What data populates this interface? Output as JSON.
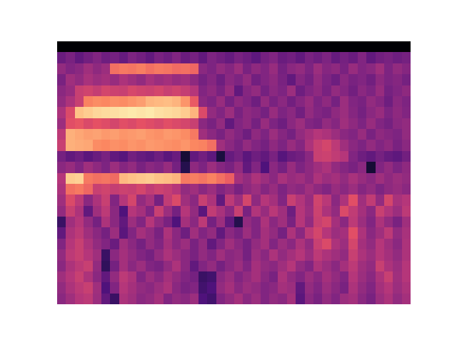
{
  "chart_data": {
    "type": "heatmap",
    "color": "magma",
    "tick_labels": false,
    "xlim": [
      -0.5,
      39.5
    ],
    "ylim": [
      23.5,
      -0.5
    ],
    "zlim": [
      0,
      1
    ],
    "cells": [
      [
        0,
        0,
        0,
        0,
        0,
        0,
        0,
        0,
        0,
        0,
        0,
        0,
        0,
        0,
        0,
        0,
        0,
        0,
        0,
        0,
        0,
        0,
        0,
        0,
        0,
        0,
        0,
        0,
        0,
        0,
        0,
        0,
        0,
        0,
        0,
        0,
        0,
        0,
        0,
        0
      ],
      [
        0.32,
        0.36,
        0.3,
        0.34,
        0.38,
        0.33,
        0.35,
        0.31,
        0.37,
        0.34,
        0.3,
        0.36,
        0.33,
        0.38,
        0.32,
        0.35,
        0.3,
        0.37,
        0.34,
        0.31,
        0.36,
        0.33,
        0.29,
        0.35,
        0.38,
        0.32,
        0.34,
        0.3,
        0.36,
        0.33,
        0.37,
        0.31,
        0.35,
        0.32,
        0.38,
        0.3,
        0.34,
        0.36,
        0.33,
        0.35
      ],
      [
        0.42,
        0.38,
        0.4,
        0.45,
        0.41,
        0.44,
        0.7,
        0.72,
        0.71,
        0.73,
        0.7,
        0.72,
        0.71,
        0.69,
        0.7,
        0.68,
        0.4,
        0.37,
        0.42,
        0.39,
        0.44,
        0.36,
        0.41,
        0.38,
        0.43,
        0.35,
        0.4,
        0.42,
        0.37,
        0.44,
        0.39,
        0.41,
        0.36,
        0.43,
        0.38,
        0.4,
        0.45,
        0.37,
        0.42,
        0.39
      ],
      [
        0.36,
        0.45,
        0.42,
        0.47,
        0.44,
        0.46,
        0.43,
        0.48,
        0.45,
        0.42,
        0.47,
        0.44,
        0.46,
        0.43,
        0.45,
        0.41,
        0.35,
        0.39,
        0.33,
        0.4,
        0.37,
        0.42,
        0.34,
        0.38,
        0.41,
        0.36,
        0.3,
        0.39,
        0.35,
        0.42,
        0.37,
        0.33,
        0.4,
        0.36,
        0.38,
        0.34,
        0.41,
        0.37,
        0.39,
        0.35
      ],
      [
        0.4,
        0.43,
        0.55,
        0.57,
        0.54,
        0.58,
        0.56,
        0.55,
        0.59,
        0.57,
        0.56,
        0.58,
        0.55,
        0.57,
        0.54,
        0.5,
        0.38,
        0.41,
        0.36,
        0.43,
        0.3,
        0.39,
        0.42,
        0.35,
        0.4,
        0.37,
        0.44,
        0.33,
        0.38,
        0.41,
        0.36,
        0.42,
        0.39,
        0.34,
        0.4,
        0.37,
        0.43,
        0.35,
        0.38,
        0.41
      ],
      [
        0.42,
        0.48,
        0.55,
        0.74,
        0.76,
        0.75,
        0.77,
        0.76,
        0.78,
        0.8,
        0.85,
        0.86,
        0.87,
        0.85,
        0.78,
        0.65,
        0.4,
        0.37,
        0.43,
        0.35,
        0.41,
        0.38,
        0.33,
        0.42,
        0.36,
        0.4,
        0.34,
        0.39,
        0.43,
        0.37,
        0.41,
        0.35,
        0.44,
        0.38,
        0.36,
        0.42,
        0.39,
        0.33,
        0.4,
        0.37
      ],
      [
        0.48,
        0.6,
        0.88,
        0.9,
        0.92,
        0.93,
        0.94,
        0.95,
        0.96,
        0.95,
        0.96,
        0.94,
        0.93,
        0.92,
        0.9,
        0.85,
        0.6,
        0.42,
        0.38,
        0.44,
        0.36,
        0.41,
        0.39,
        0.35,
        0.43,
        0.37,
        0.4,
        0.34,
        0.42,
        0.38,
        0.36,
        0.41,
        0.44,
        0.39,
        0.35,
        0.4,
        0.43,
        0.37,
        0.41,
        0.38
      ],
      [
        0.44,
        0.62,
        0.64,
        0.6,
        0.63,
        0.61,
        0.58,
        0.62,
        0.6,
        0.63,
        0.61,
        0.59,
        0.62,
        0.6,
        0.58,
        0.55,
        0.4,
        0.36,
        0.42,
        0.3,
        0.38,
        0.41,
        0.35,
        0.43,
        0.37,
        0.33,
        0.4,
        0.44,
        0.38,
        0.36,
        0.42,
        0.39,
        0.45,
        0.41,
        0.37,
        0.43,
        0.38,
        0.35,
        0.4,
        0.42
      ],
      [
        0.52,
        0.84,
        0.82,
        0.8,
        0.81,
        0.79,
        0.8,
        0.78,
        0.79,
        0.8,
        0.78,
        0.77,
        0.79,
        0.78,
        0.76,
        0.72,
        0.45,
        0.4,
        0.36,
        0.42,
        0.38,
        0.33,
        0.41,
        0.37,
        0.44,
        0.39,
        0.35,
        0.42,
        0.46,
        0.5,
        0.48,
        0.44,
        0.4,
        0.38,
        0.43,
        0.36,
        0.41,
        0.39,
        0.37,
        0.42
      ],
      [
        0.55,
        0.84,
        0.83,
        0.82,
        0.76,
        0.75,
        0.77,
        0.76,
        0.78,
        0.77,
        0.79,
        0.78,
        0.77,
        0.76,
        0.78,
        0.75,
        0.74,
        0.7,
        0.45,
        0.4,
        0.36,
        0.42,
        0.38,
        0.35,
        0.41,
        0.37,
        0.43,
        0.39,
        0.48,
        0.55,
        0.58,
        0.52,
        0.45,
        0.4,
        0.37,
        0.42,
        0.38,
        0.41,
        0.36,
        0.4
      ],
      [
        0.35,
        0.3,
        0.33,
        0.28,
        0.32,
        0.36,
        0.3,
        0.27,
        0.34,
        0.31,
        0.29,
        0.33,
        0.28,
        0.32,
        0.1,
        0.3,
        0.34,
        0.29,
        0.12,
        0.31,
        0.35,
        0.28,
        0.33,
        0.3,
        0.36,
        0.27,
        0.32,
        0.34,
        0.4,
        0.55,
        0.56,
        0.53,
        0.5,
        0.38,
        0.33,
        0.3,
        0.35,
        0.31,
        0.29,
        0.34
      ],
      [
        0.4,
        0.43,
        0.38,
        0.45,
        0.41,
        0.37,
        0.44,
        0.39,
        0.42,
        0.36,
        0.4,
        0.38,
        0.43,
        0.35,
        0.15,
        0.41,
        0.37,
        0.44,
        0.39,
        0.36,
        0.42,
        0.3,
        0.38,
        0.25,
        0.4,
        0.35,
        0.43,
        0.37,
        0.41,
        0.45,
        0.48,
        0.42,
        0.39,
        0.36,
        0.4,
        0.1,
        0.38,
        0.42,
        0.37,
        0.41
      ],
      [
        0.5,
        0.9,
        0.91,
        0.72,
        0.7,
        0.71,
        0.69,
        0.86,
        0.88,
        0.89,
        0.9,
        0.88,
        0.87,
        0.85,
        0.72,
        0.73,
        0.71,
        0.74,
        0.7,
        0.66,
        0.46,
        0.42,
        0.48,
        0.44,
        0.4,
        0.47,
        0.43,
        0.45,
        0.41,
        0.48,
        0.44,
        0.46,
        0.42,
        0.47,
        0.43,
        0.4,
        0.45,
        0.41,
        0.44,
        0.42
      ],
      [
        0.48,
        0.7,
        0.72,
        0.68,
        0.55,
        0.57,
        0.54,
        0.56,
        0.55,
        0.58,
        0.53,
        0.56,
        0.54,
        0.5,
        0.42,
        0.45,
        0.4,
        0.44,
        0.38,
        0.42,
        0.36,
        0.41,
        0.44,
        0.39,
        0.43,
        0.37,
        0.42,
        0.4,
        0.45,
        0.41,
        0.38,
        0.43,
        0.4,
        0.44,
        0.39,
        0.42,
        0.37,
        0.41,
        0.43,
        0.4
      ],
      [
        0.45,
        0.6,
        0.52,
        0.4,
        0.48,
        0.55,
        0.38,
        0.5,
        0.58,
        0.42,
        0.47,
        0.35,
        0.53,
        0.6,
        0.45,
        0.4,
        0.55,
        0.48,
        0.3,
        0.52,
        0.44,
        0.58,
        0.41,
        0.5,
        0.46,
        0.38,
        0.55,
        0.49,
        0.43,
        0.57,
        0.51,
        0.4,
        0.48,
        0.62,
        0.45,
        0.53,
        0.42,
        0.58,
        0.47,
        0.5
      ],
      [
        0.42,
        0.55,
        0.48,
        0.3,
        0.45,
        0.52,
        0.4,
        0.25,
        0.5,
        0.46,
        0.38,
        0.55,
        0.44,
        0.35,
        0.5,
        0.42,
        0.28,
        0.53,
        0.47,
        0.4,
        0.55,
        0.36,
        0.49,
        0.43,
        0.51,
        0.45,
        0.33,
        0.5,
        0.44,
        0.56,
        0.48,
        0.42,
        0.6,
        0.53,
        0.46,
        0.4,
        0.55,
        0.49,
        0.44,
        0.52
      ],
      [
        0.2,
        0.45,
        0.5,
        0.42,
        0.35,
        0.48,
        0.4,
        0.3,
        0.44,
        0.38,
        0.5,
        0.42,
        0.36,
        0.25,
        0.46,
        0.4,
        0.52,
        0.35,
        0.44,
        0.3,
        0.15,
        0.42,
        0.38,
        0.48,
        0.4,
        0.45,
        0.36,
        0.5,
        0.42,
        0.55,
        0.58,
        0.46,
        0.4,
        0.52,
        0.44,
        0.38,
        0.48,
        0.42,
        0.36,
        0.45
      ],
      [
        0.3,
        0.48,
        0.52,
        0.45,
        0.4,
        0.35,
        0.44,
        0.28,
        0.38,
        0.46,
        0.42,
        0.36,
        0.48,
        0.4,
        0.33,
        0.45,
        0.38,
        0.42,
        0.3,
        0.4,
        0.36,
        0.44,
        0.38,
        0.46,
        0.42,
        0.35,
        0.48,
        0.4,
        0.52,
        0.58,
        0.5,
        0.44,
        0.46,
        0.62,
        0.48,
        0.4,
        0.45,
        0.52,
        0.42,
        0.47
      ],
      [
        0.38,
        0.5,
        0.55,
        0.48,
        0.42,
        0.38,
        0.32,
        0.45,
        0.4,
        0.35,
        0.42,
        0.38,
        0.46,
        0.4,
        0.44,
        0.36,
        0.42,
        0.3,
        0.38,
        0.45,
        0.4,
        0.35,
        0.42,
        0.46,
        0.38,
        0.44,
        0.4,
        0.48,
        0.42,
        0.55,
        0.6,
        0.48,
        0.44,
        0.58,
        0.46,
        0.42,
        0.5,
        0.45,
        0.4,
        0.48
      ],
      [
        0.42,
        0.52,
        0.55,
        0.5,
        0.45,
        0.2,
        0.4,
        0.46,
        0.42,
        0.38,
        0.35,
        0.42,
        0.48,
        0.44,
        0.4,
        0.36,
        0.42,
        0.38,
        0.45,
        0.4,
        0.42,
        0.35,
        0.44,
        0.4,
        0.48,
        0.42,
        0.46,
        0.5,
        0.44,
        0.52,
        0.48,
        0.45,
        0.42,
        0.55,
        0.48,
        0.44,
        0.5,
        0.46,
        0.42,
        0.48
      ],
      [
        0.4,
        0.48,
        0.52,
        0.55,
        0.42,
        0.18,
        0.35,
        0.46,
        0.4,
        0.44,
        0.38,
        0.36,
        0.42,
        0.48,
        0.4,
        0.3,
        0.38,
        0.42,
        0.35,
        0.4,
        0.44,
        0.38,
        0.46,
        0.42,
        0.4,
        0.45,
        0.5,
        0.42,
        0.38,
        0.48,
        0.44,
        0.4,
        0.46,
        0.52,
        0.45,
        0.42,
        0.55,
        0.48,
        0.44,
        0.5
      ],
      [
        0.45,
        0.5,
        0.55,
        0.48,
        0.4,
        0.3,
        0.42,
        0.52,
        0.48,
        0.38,
        0.44,
        0.4,
        0.46,
        0.42,
        0.38,
        0.35,
        0.2,
        0.22,
        0.4,
        0.44,
        0.38,
        0.42,
        0.46,
        0.4,
        0.36,
        0.48,
        0.42,
        0.38,
        0.44,
        0.4,
        0.46,
        0.42,
        0.38,
        0.5,
        0.44,
        0.4,
        0.48,
        0.55,
        0.45,
        0.5
      ],
      [
        0.42,
        0.48,
        0.52,
        0.55,
        0.45,
        0.25,
        0.38,
        0.5,
        0.46,
        0.42,
        0.4,
        0.44,
        0.48,
        0.4,
        0.36,
        0.38,
        0.22,
        0.25,
        0.42,
        0.46,
        0.4,
        0.44,
        0.42,
        0.38,
        0.4,
        0.46,
        0.44,
        0.3,
        0.42,
        0.38,
        0.44,
        0.4,
        0.36,
        0.48,
        0.42,
        0.38,
        0.46,
        0.5,
        0.44,
        0.48
      ],
      [
        0.4,
        0.45,
        0.5,
        0.52,
        0.44,
        0.3,
        0.2,
        0.48,
        0.45,
        0.4,
        0.42,
        0.46,
        0.38,
        0.42,
        0.4,
        0.44,
        0.25,
        0.22,
        0.38,
        0.42,
        0.46,
        0.4,
        0.44,
        0.38,
        0.42,
        0.4,
        0.46,
        0.28,
        0.4,
        0.36,
        0.42,
        0.38,
        0.44,
        0.46,
        0.4,
        0.36,
        0.44,
        0.48,
        0.42,
        0.46
      ]
    ]
  }
}
